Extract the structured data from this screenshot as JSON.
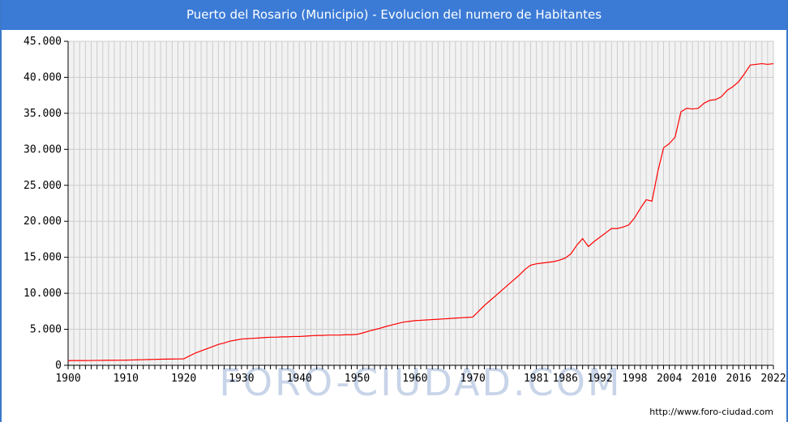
{
  "title": "Puerto del Rosario (Municipio) - Evolucion del numero de Habitantes",
  "watermark": "FORO-CIUDAD.COM",
  "source_url": "http://www.foro-ciudad.com",
  "colors": {
    "header": "#3b7bd6",
    "line": "#ff0000",
    "grid": "#cccccc",
    "plot_bg": "#f2f2f2"
  },
  "chart_data": {
    "type": "line",
    "title": "Puerto del Rosario (Municipio) - Evolucion del numero de Habitantes",
    "xlabel": "",
    "ylabel": "",
    "xlim": [
      1900,
      2022
    ],
    "ylim": [
      0,
      45000
    ],
    "grid": true,
    "x_ticks": [
      {
        "value": 1900,
        "label": "1900"
      },
      {
        "value": 1910,
        "label": "1910"
      },
      {
        "value": 1920,
        "label": "1920"
      },
      {
        "value": 1930,
        "label": "1930"
      },
      {
        "value": 1940,
        "label": "1940"
      },
      {
        "value": 1950,
        "label": "1950"
      },
      {
        "value": 1960,
        "label": "1960"
      },
      {
        "value": 1970,
        "label": "1970"
      },
      {
        "value": 1981,
        "label": "1981"
      },
      {
        "value": 1986,
        "label": "1986"
      },
      {
        "value": 1992,
        "label": "1992"
      },
      {
        "value": 1998,
        "label": "1998"
      },
      {
        "value": 2004,
        "label": "2004"
      },
      {
        "value": 2010,
        "label": "2010"
      },
      {
        "value": 2016,
        "label": "2016"
      },
      {
        "value": 2022,
        "label": "2022"
      }
    ],
    "y_ticks": [
      {
        "value": 0,
        "label": "0"
      },
      {
        "value": 5000,
        "label": "5.000"
      },
      {
        "value": 10000,
        "label": "10.000"
      },
      {
        "value": 15000,
        "label": "15.000"
      },
      {
        "value": 20000,
        "label": "20.000"
      },
      {
        "value": 25000,
        "label": "25.000"
      },
      {
        "value": 30000,
        "label": "30.000"
      },
      {
        "value": 35000,
        "label": "35.000"
      },
      {
        "value": 40000,
        "label": "40.000"
      },
      {
        "value": 45000,
        "label": "45.000"
      }
    ],
    "series": [
      {
        "x": [
          1900,
          1901,
          1902,
          1903,
          1904,
          1905,
          1906,
          1907,
          1908,
          1909,
          1910,
          1911,
          1912,
          1913,
          1914,
          1915,
          1916,
          1917,
          1918,
          1919,
          1920,
          1921,
          1922,
          1923,
          1924,
          1925,
          1926,
          1927,
          1928,
          1929,
          1930,
          1931,
          1932,
          1933,
          1934,
          1935,
          1936,
          1937,
          1938,
          1939,
          1940,
          1941,
          1942,
          1943,
          1944,
          1945,
          1946,
          1947,
          1948,
          1949,
          1950,
          1951,
          1952,
          1953,
          1954,
          1955,
          1956,
          1957,
          1958,
          1959,
          1960,
          1961,
          1962,
          1963,
          1964,
          1965,
          1966,
          1967,
          1968,
          1969,
          1970,
          1971,
          1972,
          1973,
          1974,
          1975,
          1976,
          1977,
          1978,
          1979,
          1980,
          1981,
          1982,
          1983,
          1984,
          1985,
          1986,
          1987,
          1988,
          1989,
          1990,
          1991,
          1992,
          1993,
          1994,
          1995,
          1996,
          1997,
          1998,
          1999,
          2000,
          2001,
          2002,
          2003,
          2004,
          2005,
          2006,
          2007,
          2008,
          2009,
          2010,
          2011,
          2012,
          2013,
          2014,
          2015,
          2016,
          2017,
          2018,
          2019,
          2020,
          2021,
          2022
        ],
        "y": [
          650,
          660,
          660,
          660,
          670,
          680,
          690,
          700,
          700,
          710,
          720,
          740,
          760,
          780,
          800,
          820,
          840,
          860,
          870,
          880,
          900,
          1300,
          1700,
          2000,
          2300,
          2600,
          2900,
          3100,
          3350,
          3500,
          3650,
          3700,
          3750,
          3800,
          3850,
          3900,
          3900,
          3950,
          3950,
          4000,
          4000,
          4050,
          4100,
          4150,
          4150,
          4200,
          4200,
          4200,
          4250,
          4250,
          4300,
          4500,
          4750,
          4950,
          5150,
          5400,
          5600,
          5800,
          6000,
          6100,
          6200,
          6250,
          6300,
          6350,
          6400,
          6450,
          6500,
          6550,
          6600,
          6650,
          6700,
          7500,
          8300,
          9000,
          9700,
          10400,
          11100,
          11800,
          12500,
          13300,
          13900,
          14100,
          14200,
          14300,
          14400,
          14600,
          14900,
          15500,
          16700,
          17600,
          16500,
          17200,
          17800,
          18400,
          19000,
          19000,
          19200,
          19500,
          20500,
          21800,
          23000,
          22800,
          26900,
          30200,
          30800,
          31700,
          35200,
          35700,
          35600,
          35700,
          36400,
          36800,
          36900,
          37300,
          38200,
          38700,
          39400,
          40500,
          41700,
          41800,
          41900,
          41800,
          41900
        ]
      }
    ]
  }
}
